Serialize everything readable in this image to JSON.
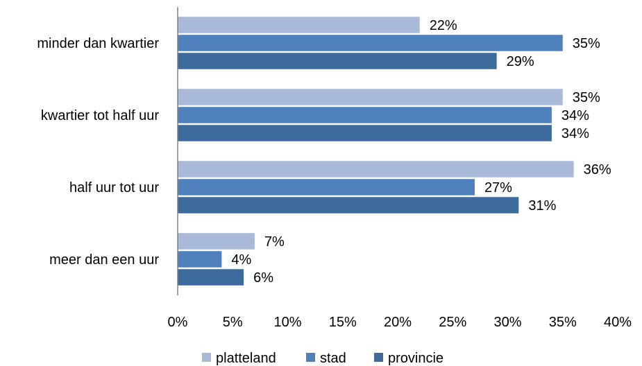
{
  "chart_data": {
    "type": "bar",
    "orientation": "horizontal",
    "categories": [
      "minder dan kwartier",
      "kwartier tot half uur",
      "half uur tot uur",
      "meer dan een uur"
    ],
    "series": [
      {
        "name": "platteland",
        "values": [
          22,
          35,
          36,
          7
        ],
        "color": "#a9b9d8"
      },
      {
        "name": "stad",
        "values": [
          35,
          34,
          27,
          4
        ],
        "color": "#4f81bd"
      },
      {
        "name": "provincie",
        "values": [
          29,
          34,
          31,
          6
        ],
        "color": "#3d6b9e"
      }
    ],
    "data_labels": [
      [
        "22%",
        "35%",
        "36%",
        "7%"
      ],
      [
        "35%",
        "34%",
        "27%",
        "4%"
      ],
      [
        "29%",
        "34%",
        "31%",
        "6%"
      ]
    ],
    "x_ticks": [
      "0%",
      "5%",
      "10%",
      "15%",
      "20%",
      "25%",
      "30%",
      "35%",
      "40%"
    ],
    "xlim": [
      0,
      40
    ],
    "grid": false,
    "legend": "bottom"
  }
}
